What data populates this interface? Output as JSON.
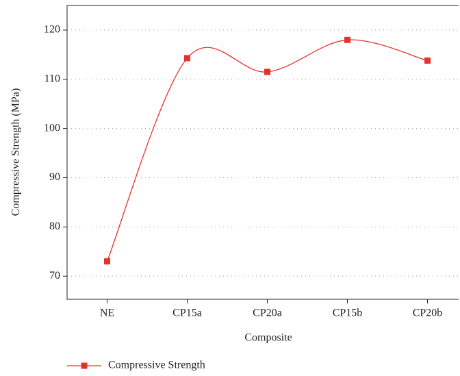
{
  "chart_data": {
    "type": "line",
    "x_label": "Composite",
    "y_label": "Compressive Strength (MPa)",
    "categories": [
      "NE",
      "CP15a",
      "CP20a",
      "CP15b",
      "CP20b"
    ],
    "series": [
      {
        "name": "Compressive Strength",
        "color": "#e8302a",
        "values": [
          73,
          114.3,
          111.5,
          118,
          113.8
        ]
      }
    ],
    "ylim": [
      65.3,
      125
    ],
    "yticks": [
      70,
      80,
      90,
      100,
      110,
      120
    ],
    "grid": true,
    "smooth": true,
    "legend": "bottom-left"
  }
}
